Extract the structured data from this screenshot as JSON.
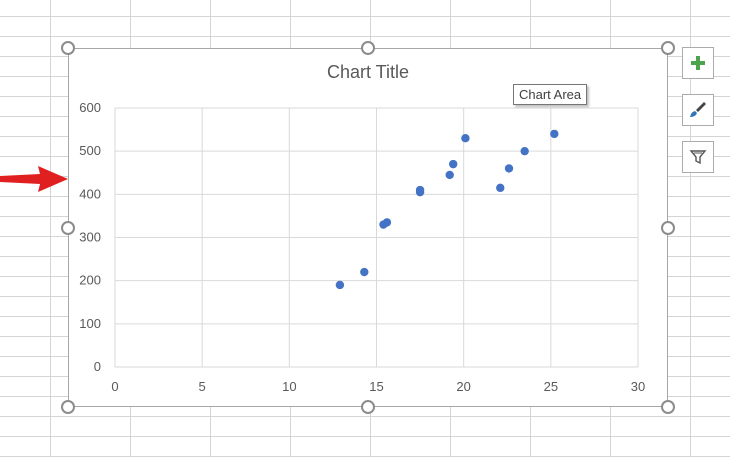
{
  "chart": {
    "title": "Chart Title",
    "tooltip": "Chart Area"
  },
  "side_buttons": [
    {
      "name": "chart-elements-button",
      "icon": "plus-icon"
    },
    {
      "name": "chart-styles-button",
      "icon": "paintbrush-icon"
    },
    {
      "name": "chart-filters-button",
      "icon": "funnel-icon"
    }
  ],
  "annotation": {
    "icon": "red-arrow-icon",
    "color": "#e02020"
  },
  "chart_data": {
    "type": "scatter",
    "title": "Chart Title",
    "xlim": [
      0,
      30
    ],
    "ylim": [
      0,
      600
    ],
    "x_ticks": [
      "0",
      "5",
      "10",
      "15",
      "20",
      "25",
      "30"
    ],
    "y_ticks": [
      "0",
      "100",
      "200",
      "300",
      "400",
      "500",
      "600"
    ],
    "grid": true,
    "marker_color": "#4472c4",
    "points": [
      {
        "x": 12.9,
        "y": 190
      },
      {
        "x": 14.3,
        "y": 220
      },
      {
        "x": 15.4,
        "y": 330
      },
      {
        "x": 15.6,
        "y": 335
      },
      {
        "x": 17.5,
        "y": 405
      },
      {
        "x": 17.5,
        "y": 410
      },
      {
        "x": 19.2,
        "y": 445
      },
      {
        "x": 19.4,
        "y": 470
      },
      {
        "x": 20.1,
        "y": 530
      },
      {
        "x": 22.1,
        "y": 415
      },
      {
        "x": 22.6,
        "y": 460
      },
      {
        "x": 23.5,
        "y": 500
      },
      {
        "x": 25.2,
        "y": 540
      }
    ]
  }
}
